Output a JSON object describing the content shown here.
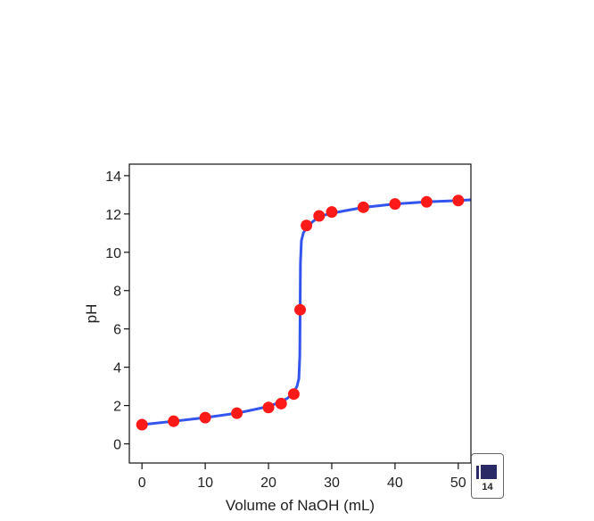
{
  "chart_data": {
    "type": "line",
    "title": "",
    "xlabel": "Volume of NaOH (mL)",
    "ylabel": "pH",
    "xlim": [
      -2,
      52
    ],
    "ylim": [
      -1,
      14.6
    ],
    "xticks": [
      0,
      10,
      20,
      30,
      40,
      50
    ],
    "yticks": [
      0,
      2,
      4,
      6,
      8,
      10,
      12,
      14
    ],
    "grid": false,
    "legend": "none",
    "series": [
      {
        "kind": "curve",
        "color": "#3355ee",
        "x": [
          0,
          5,
          10,
          15,
          20,
          22,
          23,
          24,
          24.5,
          24.8,
          24.95,
          25,
          25.05,
          25.2,
          25.5,
          26,
          27,
          28,
          30,
          35,
          40,
          45,
          50,
          52
        ],
        "y": [
          1.0,
          1.18,
          1.37,
          1.6,
          1.95,
          2.2,
          2.38,
          2.69,
          3.0,
          3.4,
          4.6,
          7.0,
          9.4,
          10.6,
          11.0,
          11.3,
          11.6,
          11.86,
          12.04,
          12.34,
          12.52,
          12.63,
          12.7,
          12.74
        ]
      },
      {
        "kind": "points",
        "color": "#ff1a1a",
        "x": [
          0,
          5,
          10,
          15,
          20,
          22,
          24,
          25,
          26,
          28,
          30,
          35,
          40,
          45,
          50
        ],
        "y": [
          1.0,
          1.18,
          1.37,
          1.6,
          1.9,
          2.1,
          2.6,
          7.0,
          11.4,
          11.9,
          12.1,
          12.35,
          12.52,
          12.63,
          12.7
        ]
      }
    ]
  },
  "badge": {
    "label": "14",
    "color": "#2a2a66"
  }
}
